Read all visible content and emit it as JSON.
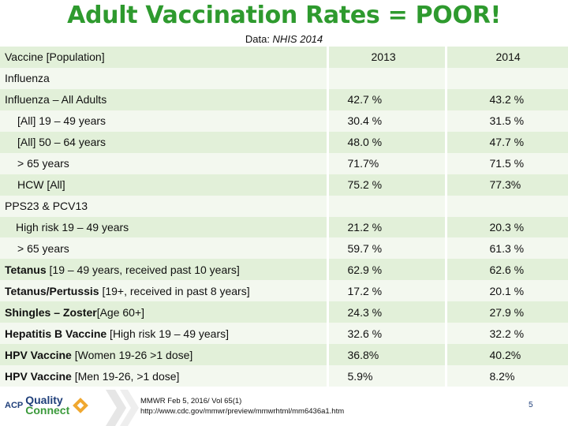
{
  "title": "Adult Vaccination Rates = POOR!",
  "subtitle_prefix": "Data: ",
  "subtitle_source": "NHIS 2014",
  "table": {
    "header": {
      "label": "Vaccine [Population]",
      "y1": "2013",
      "y2": "2014"
    },
    "rows": [
      {
        "label": "Influenza",
        "v1": "",
        "v2": ""
      },
      {
        "label": "Influenza – All Adults",
        "v1": "42.7 %",
        "v2": "43.2 %"
      },
      {
        "label": "[All] 19 – 49 years",
        "v1": "30.4 %",
        "v2": "31.5 %"
      },
      {
        "label": "[All] 50 – 64 years",
        "v1": "48.0 %",
        "v2": "47.7 %"
      },
      {
        "label": "> 65 years",
        "v1": "71.7%",
        "v2": "71.5 %"
      },
      {
        "label": "HCW [All]",
        "v1": "75.2 %",
        "v2": "77.3%"
      },
      {
        "label": "PPS23 & PCV13",
        "v1": "",
        "v2": ""
      },
      {
        "label": "High risk 19 – 49 years",
        "v1": "21.2 %",
        "v2": "20.3 %"
      },
      {
        "label": "> 65 years",
        "v1": "59.7 %",
        "v2": "61.3 %"
      },
      {
        "label_bold": "Tetanus",
        "label_rest": " [19 – 49 years, received past 10 years]",
        "v1": "62.9 %",
        "v2": "62.6 %"
      },
      {
        "label_bold": "Tetanus/Pertussis",
        "label_rest": " [19+, received in past 8 years]",
        "v1": "17.2 %",
        "v2": "20.1 %"
      },
      {
        "label_bold": "Shingles – Zoster",
        "label_rest": "[Age 60+]",
        "v1": "24.3 %",
        "v2": "27.9 %"
      },
      {
        "label_bold": "Hepatitis B Vaccine",
        "label_rest": " [High risk 19 – 49 years]",
        "v1": "32.6 %",
        "v2": "32.2 %"
      },
      {
        "label_bold": "HPV Vaccine",
        "label_rest": " [Women 19-26 >1 dose]",
        "v1": "36.8%",
        "v2": "40.2%"
      },
      {
        "label_bold": "HPV Vaccine",
        "label_rest": " [Men 19-26, >1 dose]",
        "v1": "5.9%",
        "v2": "8.2%"
      }
    ]
  },
  "footer": {
    "logo_acp": "ACP",
    "logo_quality": "Quality",
    "logo_connect": "Connect",
    "citation_line1": "MMWR Feb 5, 2016/ Vol 65(1)",
    "citation_line2": "http://www.cdc.gov/mmwr/preview/mmwrhtml/mm6436a1.htm",
    "page_number": "5"
  },
  "colors": {
    "title": "#2e9a2e",
    "row_dark": "#e2f0d9",
    "row_light": "#f3f8ef",
    "logo_blue": "#1f3f7a"
  },
  "icons": [
    "quality-connect-logo-icon",
    "chevron-decoration-icon"
  ]
}
